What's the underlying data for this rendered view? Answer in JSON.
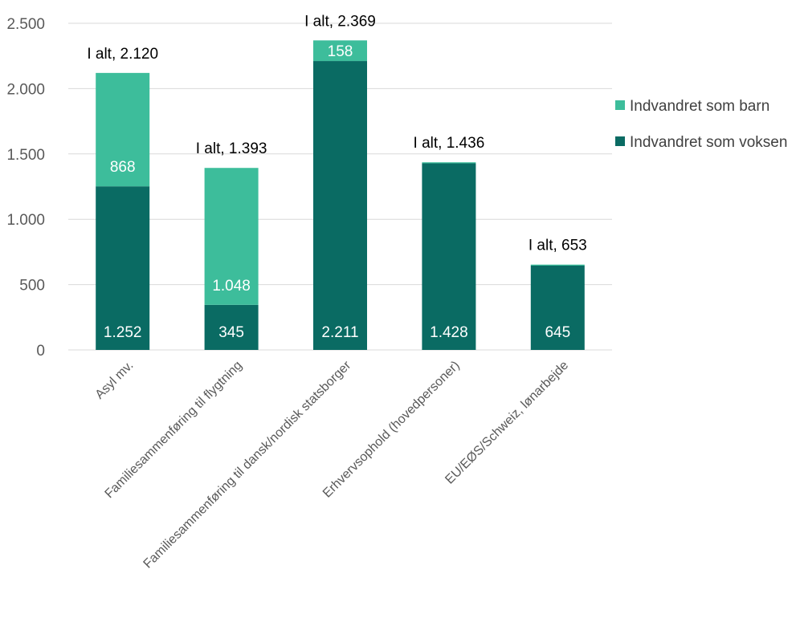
{
  "chart_data": {
    "type": "bar",
    "stacked": true,
    "categories": [
      "Asyl mv.",
      "Familiesammenføring til flygtning",
      "Familiesammenføring til dansk/nordisk statsborger",
      "Erhvervsophold (hovedpersoner)",
      "EU/EØS/Schweiz, lønarbejde"
    ],
    "series": [
      {
        "name": "Indvandret som voksen",
        "color": "#0a6b63",
        "values": [
          1252,
          345,
          2211,
          1428,
          645
        ],
        "labels": [
          "1.252",
          "345",
          "2.211",
          "1.428",
          "645"
        ]
      },
      {
        "name": "Indvandret som barn",
        "color": "#3dbd9b",
        "values": [
          868,
          1048,
          158,
          8,
          8
        ],
        "labels": [
          "868",
          "1.048",
          "158",
          "",
          ""
        ]
      }
    ],
    "totals": [
      2120,
      1393,
      2369,
      1436,
      653
    ],
    "total_labels": [
      "I alt, 2.120",
      "I alt, 1.393",
      "I alt, 2.369",
      "I alt, 1.436",
      "I alt, 653"
    ],
    "ylim": [
      0,
      2500
    ],
    "yticks": [
      0,
      500,
      1000,
      1500,
      2000,
      2500
    ],
    "ytick_labels": [
      "0",
      "500",
      "1.000",
      "1.500",
      "2.000",
      "2.500"
    ],
    "grid": true,
    "legend_position": "right",
    "legend_order": [
      "Indvandret som barn",
      "Indvandret som voksen"
    ]
  }
}
